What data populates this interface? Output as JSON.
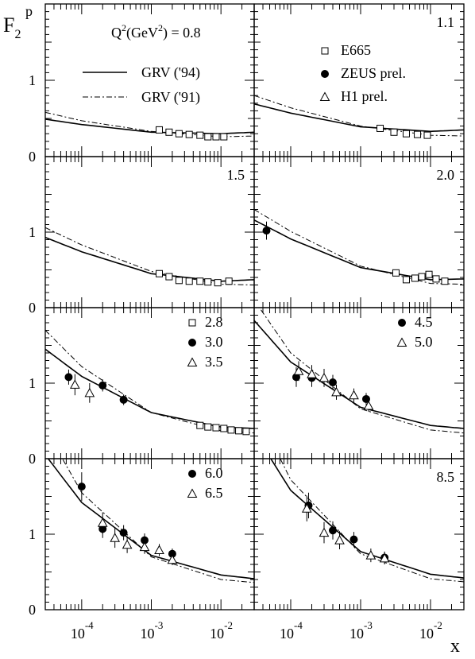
{
  "chart_data": {
    "type": "scatter",
    "x_scale": "log",
    "xlim": [
      3e-05,
      0.03
    ],
    "ylim": [
      0,
      2
    ],
    "x_tick_labels": [
      {
        "base": "10",
        "exp": "-4"
      },
      {
        "base": "10",
        "exp": "-3"
      },
      {
        "base": "10",
        "exp": "-2"
      }
    ],
    "y_tick_labels": [
      "0",
      "1"
    ],
    "y_axis_label": {
      "base": "F",
      "sub": "2",
      "sup": "p"
    },
    "x_axis_label": "x",
    "q2_unit_label": {
      "pre": "Q",
      "sup": "2",
      "mid": "(GeV",
      "sup2": "2",
      "post": ") = 0.8"
    },
    "legend_curves": [
      {
        "label": "GRV ('94)",
        "style": "solid"
      },
      {
        "label": "GRV ('91)",
        "style": "dashdot"
      }
    ],
    "legend_experiments": [
      {
        "label": "E665",
        "marker": "square"
      },
      {
        "label": "ZEUS prel.",
        "marker": "circle"
      },
      {
        "label": "H1 prel.",
        "marker": "triangle"
      }
    ],
    "panels": [
      {
        "q2_label": "0.8",
        "curves": {
          "grv94": [
            [
              3e-05,
              0.49
            ],
            [
              0.0001,
              0.42
            ],
            [
              0.001,
              0.32
            ],
            [
              0.01,
              0.3
            ],
            [
              0.03,
              0.32
            ]
          ],
          "grv91": [
            [
              3e-05,
              0.58
            ],
            [
              0.0001,
              0.47
            ],
            [
              0.001,
              0.33
            ],
            [
              0.01,
              0.26
            ],
            [
              0.03,
              0.27
            ]
          ]
        },
        "series": [
          {
            "marker": "square",
            "points": [
              [
                0.0013,
                0.35,
                0.02
              ],
              [
                0.0018,
                0.32,
                0.02
              ],
              [
                0.0025,
                0.3,
                0.02
              ],
              [
                0.0035,
                0.29,
                0.02
              ],
              [
                0.005,
                0.28,
                0.02
              ],
              [
                0.0065,
                0.26,
                0.02
              ],
              [
                0.0085,
                0.26,
                0.02
              ],
              [
                0.011,
                0.26,
                0.02
              ]
            ]
          }
        ]
      },
      {
        "q2_label": "1.1",
        "curves": {
          "grv94": [
            [
              3e-05,
              0.69
            ],
            [
              0.0001,
              0.57
            ],
            [
              0.001,
              0.39
            ],
            [
              0.01,
              0.33
            ],
            [
              0.03,
              0.35
            ]
          ],
          "grv91": [
            [
              3e-05,
              0.8
            ],
            [
              0.0001,
              0.64
            ],
            [
              0.001,
              0.4
            ],
            [
              0.01,
              0.28
            ],
            [
              0.03,
              0.27
            ]
          ]
        },
        "series": [
          {
            "marker": "square",
            "points": [
              [
                0.0019,
                0.37,
                0.02
              ],
              [
                0.003,
                0.32,
                0.02
              ],
              [
                0.0045,
                0.3,
                0.02
              ],
              [
                0.0065,
                0.29,
                0.02
              ],
              [
                0.009,
                0.28,
                0.02
              ]
            ]
          }
        ]
      },
      {
        "q2_label": "1.5",
        "curves": {
          "grv94": [
            [
              3e-05,
              0.93
            ],
            [
              0.0001,
              0.74
            ],
            [
              0.001,
              0.45
            ],
            [
              0.01,
              0.35
            ],
            [
              0.03,
              0.37
            ]
          ],
          "grv91": [
            [
              3e-05,
              1.06
            ],
            [
              0.0001,
              0.83
            ],
            [
              0.001,
              0.48
            ],
            [
              0.01,
              0.31
            ],
            [
              0.03,
              0.3
            ]
          ]
        },
        "series": [
          {
            "marker": "square",
            "points": [
              [
                0.0013,
                0.45,
                0.02
              ],
              [
                0.0018,
                0.41,
                0.02
              ],
              [
                0.0025,
                0.36,
                0.02
              ],
              [
                0.0035,
                0.35,
                0.02
              ],
              [
                0.005,
                0.35,
                0.02
              ],
              [
                0.0065,
                0.34,
                0.02
              ],
              [
                0.009,
                0.33,
                0.02
              ],
              [
                0.013,
                0.35,
                0.02
              ]
            ]
          }
        ]
      },
      {
        "q2_label": "2.0",
        "curves": {
          "grv94": [
            [
              3e-05,
              1.16
            ],
            [
              0.0001,
              0.91
            ],
            [
              0.001,
              0.53
            ],
            [
              0.01,
              0.37
            ],
            [
              0.03,
              0.38
            ]
          ],
          "grv91": [
            [
              3e-05,
              1.3
            ],
            [
              0.0001,
              1.01
            ],
            [
              0.001,
              0.55
            ],
            [
              0.01,
              0.32
            ],
            [
              0.03,
              0.31
            ]
          ]
        },
        "series": [
          {
            "marker": "circle",
            "points": [
              [
                4.5e-05,
                1.02,
                0.12
              ]
            ]
          },
          {
            "marker": "square",
            "points": [
              [
                0.0032,
                0.46,
                0.02
              ],
              [
                0.0045,
                0.37,
                0.02
              ],
              [
                0.006,
                0.39,
                0.02
              ],
              [
                0.0075,
                0.41,
                0.02
              ],
              [
                0.0095,
                0.44,
                0.02
              ],
              [
                0.012,
                0.38,
                0.02
              ],
              [
                0.016,
                0.35,
                0.02
              ]
            ]
          }
        ]
      },
      {
        "q2_label": null,
        "legend": [
          {
            "marker": "square",
            "label": "2.8"
          },
          {
            "marker": "circle",
            "label": "3.0"
          },
          {
            "marker": "triangle",
            "label": "3.5"
          }
        ],
        "curves": {
          "grv94": [
            [
              3e-05,
              1.45
            ],
            [
              0.0001,
              1.09
            ],
            [
              0.001,
              0.61
            ],
            [
              0.01,
              0.42
            ],
            [
              0.03,
              0.4
            ]
          ],
          "grv91": [
            [
              3e-05,
              1.7
            ],
            [
              0.0001,
              1.22
            ],
            [
              0.001,
              0.61
            ],
            [
              0.01,
              0.37
            ],
            [
              0.03,
              0.34
            ]
          ]
        },
        "series": [
          {
            "marker": "square",
            "points": [
              [
                0.005,
                0.44,
                0.02
              ],
              [
                0.0065,
                0.42,
                0.02
              ],
              [
                0.0085,
                0.41,
                0.02
              ],
              [
                0.011,
                0.4,
                0.02
              ],
              [
                0.014,
                0.38,
                0.02
              ],
              [
                0.018,
                0.37,
                0.02
              ],
              [
                0.023,
                0.36,
                0.02
              ]
            ]
          },
          {
            "marker": "circle",
            "points": [
              [
                6.5e-05,
                1.08,
                0.1
              ],
              [
                0.0002,
                0.97,
                0.08
              ],
              [
                0.0004,
                0.78,
                0.07
              ]
            ]
          },
          {
            "marker": "triangle",
            "points": [
              [
                8e-05,
                0.98,
                0.14
              ],
              [
                0.00013,
                0.87,
                0.13
              ]
            ]
          }
        ]
      },
      {
        "q2_label": null,
        "legend": [
          {
            "marker": "circle",
            "label": "4.5"
          },
          {
            "marker": "triangle",
            "label": "5.0"
          }
        ],
        "curves": {
          "grv94": [
            [
              3e-05,
              1.83
            ],
            [
              0.0001,
              1.28
            ],
            [
              0.001,
              0.68
            ],
            [
              0.01,
              0.44
            ],
            [
              0.03,
              0.4
            ]
          ],
          "grv91": [
            [
              3e-05,
              2.1
            ],
            [
              0.0001,
              1.4
            ],
            [
              0.001,
              0.66
            ],
            [
              0.01,
              0.38
            ],
            [
              0.03,
              0.34
            ]
          ]
        },
        "series": [
          {
            "marker": "circle",
            "points": [
              [
                0.00012,
                1.08,
                0.13
              ],
              [
                0.0002,
                1.07,
                0.12
              ],
              [
                0.0004,
                1.01,
                0.1
              ],
              [
                0.0012,
                0.79,
                0.08
              ]
            ]
          },
          {
            "marker": "triangle",
            "points": [
              [
                0.00013,
                1.16,
                0.13
              ],
              [
                0.0002,
                1.12,
                0.12
              ],
              [
                0.0003,
                1.07,
                0.12
              ],
              [
                0.00045,
                0.88,
                0.1
              ],
              [
                0.0008,
                0.84,
                0.09
              ],
              [
                0.0013,
                0.7,
                0.08
              ]
            ]
          }
        ]
      },
      {
        "q2_label": null,
        "legend": [
          {
            "marker": "circle",
            "label": "6.0"
          },
          {
            "marker": "triangle",
            "label": "6.5"
          }
        ],
        "curves": {
          "grv94": [
            [
              3e-05,
              2.05
            ],
            [
              0.0001,
              1.42
            ],
            [
              0.001,
              0.72
            ],
            [
              0.01,
              0.46
            ],
            [
              0.03,
              0.41
            ]
          ],
          "grv91": [
            [
              3e-05,
              2.4
            ],
            [
              0.0001,
              1.55
            ],
            [
              0.001,
              0.7
            ],
            [
              0.01,
              0.4
            ],
            [
              0.03,
              0.36
            ]
          ]
        },
        "series": [
          {
            "marker": "circle",
            "points": [
              [
                0.0001,
                1.63,
                0.19
              ],
              [
                0.0002,
                1.07,
                0.12
              ],
              [
                0.0004,
                1.02,
                0.1
              ],
              [
                0.0008,
                0.92,
                0.09
              ],
              [
                0.002,
                0.74,
                0.07
              ]
            ]
          },
          {
            "marker": "triangle",
            "points": [
              [
                0.0002,
                1.15,
                0.14
              ],
              [
                0.0003,
                0.95,
                0.13
              ],
              [
                0.00045,
                0.86,
                0.11
              ],
              [
                0.0008,
                0.83,
                0.09
              ],
              [
                0.0013,
                0.79,
                0.08
              ],
              [
                0.002,
                0.66,
                0.07
              ]
            ]
          }
        ]
      },
      {
        "q2_label": "8.5",
        "curves": {
          "grv94": [
            [
              3e-05,
              2.35
            ],
            [
              0.0001,
              1.58
            ],
            [
              0.001,
              0.77
            ],
            [
              0.01,
              0.47
            ],
            [
              0.03,
              0.42
            ]
          ],
          "grv91": [
            [
              3e-05,
              2.7
            ],
            [
              0.0001,
              1.72
            ],
            [
              0.001,
              0.74
            ],
            [
              0.01,
              0.41
            ],
            [
              0.03,
              0.37
            ]
          ]
        },
        "series": [
          {
            "marker": "circle",
            "points": [
              [
                0.00018,
                1.38,
                0.17
              ],
              [
                0.0004,
                1.05,
                0.12
              ],
              [
                0.0008,
                0.93,
                0.1
              ],
              [
                0.0022,
                0.69,
                0.08
              ]
            ]
          },
          {
            "marker": "triangle",
            "points": [
              [
                0.00017,
                1.34,
                0.17
              ],
              [
                0.0003,
                1.02,
                0.14
              ],
              [
                0.0005,
                0.92,
                0.12
              ],
              [
                0.0014,
                0.72,
                0.09
              ],
              [
                0.0022,
                0.68,
                0.08
              ]
            ]
          }
        ]
      }
    ]
  }
}
